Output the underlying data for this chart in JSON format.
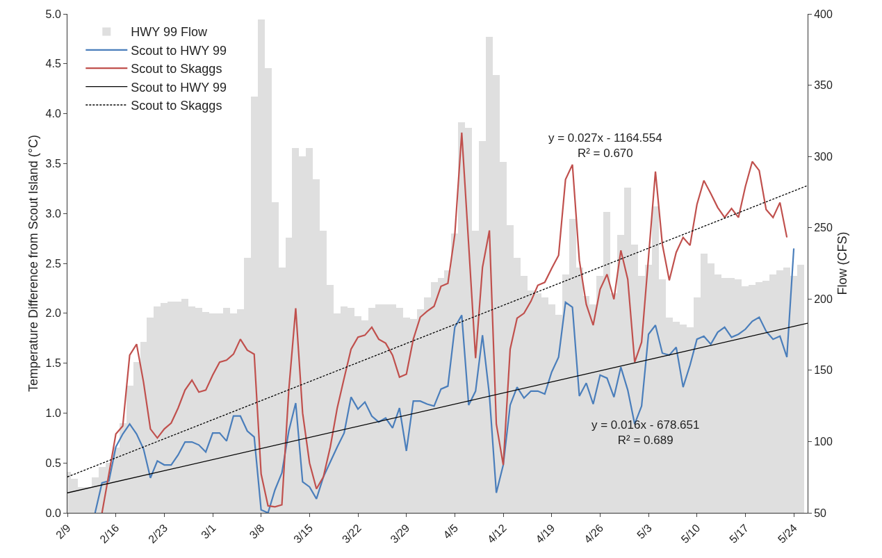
{
  "chart_data": {
    "type": "line",
    "ylabel": "Temperature Difference from Scout Island (°C)",
    "y2label": "Flow (CFS)",
    "x": [
      "--02-09",
      "--02-10",
      "--02-11",
      "--02-12",
      "--02-13",
      "--02-14",
      "--02-15",
      "--02-16",
      "--02-17",
      "--02-18",
      "--02-19",
      "--02-20",
      "--02-21",
      "--02-22",
      "--02-23",
      "--02-24",
      "--02-25",
      "--02-26",
      "--02-27",
      "--02-28",
      "--02-29",
      "--03-01",
      "--03-02",
      "--03-03",
      "--03-04",
      "--03-05",
      "--03-06",
      "--03-07",
      "--03-08",
      "--03-09",
      "--03-10",
      "--03-11",
      "--03-12",
      "--03-13",
      "--03-14",
      "--03-15",
      "--03-16",
      "--03-17",
      "--03-18",
      "--03-19",
      "--03-20",
      "--03-21",
      "--03-22",
      "--03-23",
      "--03-24",
      "--03-25",
      "--03-26",
      "--03-27",
      "--03-28",
      "--03-29",
      "--03-30",
      "--03-31",
      "--04-01",
      "--04-02",
      "--04-03",
      "--04-04",
      "--04-05",
      "--04-06",
      "--04-07",
      "--04-08",
      "--04-09",
      "--04-10",
      "--04-11",
      "--04-12",
      "--04-13",
      "--04-14",
      "--04-15",
      "--04-16",
      "--04-17",
      "--04-18",
      "--04-19",
      "--04-20",
      "--04-21",
      "--04-22",
      "--04-23",
      "--04-24",
      "--04-25",
      "--04-26",
      "--04-27",
      "--04-28",
      "--04-29",
      "--04-30",
      "--05-01",
      "--05-02",
      "--05-03",
      "--05-04",
      "--05-05",
      "--05-06",
      "--05-07",
      "--05-08",
      "--05-09",
      "--05-10",
      "--05-11",
      "--05-12",
      "--05-13",
      "--05-14",
      "--05-15",
      "--05-16",
      "--05-17",
      "--05-18",
      "--05-19",
      "--05-20",
      "--05-21",
      "--05-22",
      "--05-23",
      "--05-24",
      "--05-25"
    ],
    "series": [
      {
        "name": "HWY 99 Flow",
        "type": "bar",
        "axis": "y2",
        "color": "#dfdfdf",
        "values": [
          79,
          74,
          68,
          68,
          75,
          82,
          85,
          96,
          113,
          139,
          156,
          170,
          187,
          195,
          197,
          198,
          198,
          200,
          195,
          194,
          191,
          190,
          190,
          194,
          190,
          193,
          229,
          342,
          396,
          362,
          268,
          222,
          243,
          306,
          300,
          306,
          284,
          248,
          210,
          190,
          195,
          194,
          188,
          185,
          194,
          196,
          196,
          196,
          194,
          187,
          186,
          193,
          201,
          212,
          215,
          220,
          246,
          324,
          320,
          248,
          311,
          384,
          357,
          296,
          252,
          229,
          216,
          206,
          204,
          201,
          196,
          189,
          217,
          256,
          222,
          202,
          196,
          216,
          261,
          204,
          245,
          278,
          238,
          216,
          224,
          265,
          214,
          187,
          184,
          182,
          180,
          201,
          232,
          225,
          217,
          215,
          215,
          214,
          209,
          210,
          212,
          213,
          217,
          220,
          222,
          216,
          224
        ]
      },
      {
        "name": "Scout to HWY 99",
        "color": "#4a7ebb",
        "values": [
          null,
          null,
          null,
          null,
          0.0,
          0.3,
          0.32,
          0.66,
          0.79,
          0.89,
          0.79,
          0.64,
          0.35,
          0.52,
          0.48,
          0.48,
          0.58,
          0.71,
          0.71,
          0.68,
          0.61,
          0.8,
          0.8,
          0.72,
          0.97,
          0.97,
          0.82,
          0.76,
          0.03,
          0.0,
          0.23,
          0.4,
          0.82,
          1.1,
          0.31,
          0.26,
          0.14,
          0.36,
          0.51,
          0.66,
          0.8,
          1.16,
          1.04,
          1.11,
          0.97,
          0.91,
          0.95,
          0.85,
          1.05,
          0.62,
          1.12,
          1.12,
          1.09,
          1.07,
          1.24,
          1.27,
          1.86,
          1.98,
          1.08,
          1.22,
          1.78,
          1.18,
          0.2,
          0.48,
          1.08,
          1.26,
          1.15,
          1.22,
          1.22,
          1.19,
          1.41,
          1.56,
          2.11,
          2.06,
          1.17,
          1.3,
          1.09,
          1.38,
          1.35,
          1.16,
          1.46,
          1.23,
          0.89,
          1.07,
          1.79,
          1.88,
          1.6,
          1.58,
          1.66,
          1.26,
          1.48,
          1.74,
          1.77,
          1.69,
          1.81,
          1.86,
          1.76,
          1.79,
          1.84,
          1.92,
          1.96,
          1.82,
          1.74,
          1.77,
          1.56,
          2.65,
          null
        ]
      },
      {
        "name": "Scout to Skaggs",
        "color": "#c0504d",
        "values": [
          null,
          null,
          null,
          null,
          null,
          0.0,
          0.39,
          0.79,
          0.87,
          1.58,
          1.69,
          1.31,
          0.84,
          0.75,
          0.84,
          0.9,
          1.05,
          1.23,
          1.33,
          1.21,
          1.23,
          1.38,
          1.51,
          1.53,
          1.59,
          1.74,
          1.63,
          1.59,
          0.39,
          0.07,
          0.06,
          0.08,
          1.23,
          2.05,
          1.0,
          0.5,
          0.24,
          0.36,
          0.66,
          1.05,
          1.35,
          1.64,
          1.76,
          1.78,
          1.86,
          1.74,
          1.7,
          1.58,
          1.36,
          1.39,
          1.74,
          1.96,
          2.02,
          2.07,
          2.27,
          2.3,
          2.79,
          3.81,
          2.69,
          1.55,
          2.46,
          2.83,
          0.89,
          0.48,
          1.64,
          1.95,
          2.0,
          2.12,
          2.28,
          2.31,
          2.45,
          2.58,
          3.34,
          3.49,
          2.53,
          2.09,
          1.88,
          2.24,
          2.39,
          2.14,
          2.63,
          2.34,
          1.51,
          1.71,
          2.56,
          3.42,
          2.69,
          2.33,
          2.61,
          2.76,
          2.68,
          3.09,
          3.33,
          3.2,
          3.06,
          2.96,
          3.05,
          2.96,
          3.27,
          3.52,
          3.43,
          3.04,
          2.96,
          3.11,
          2.76,
          null,
          null
        ]
      },
      {
        "name": "Scout to HWY 99",
        "color": "#000000",
        "line_style": "solid",
        "x": [
          "--02-09",
          "--05-26"
        ],
        "values": [
          0.2,
          1.9
        ]
      },
      {
        "name": "Scout to Skaggs",
        "color": "#000000",
        "line_style": "dashed",
        "x": [
          "--02-09",
          "--05-26"
        ],
        "values": [
          0.36,
          3.28
        ]
      }
    ],
    "xlim": [
      "--02-09",
      "--05-26"
    ],
    "xticks": [
      {
        "value": "--02-09",
        "label": "2/9"
      },
      {
        "value": "--02-16",
        "label": "2/16"
      },
      {
        "value": "--02-23",
        "label": "2/23"
      },
      {
        "value": "--03-01",
        "label": "3/1"
      },
      {
        "value": "--03-08",
        "label": "3/8"
      },
      {
        "value": "--03-15",
        "label": "3/15"
      },
      {
        "value": "--03-22",
        "label": "3/22"
      },
      {
        "value": "--03-29",
        "label": "3/29"
      },
      {
        "value": "--04-05",
        "label": "4/5"
      },
      {
        "value": "--04-12",
        "label": "4/12"
      },
      {
        "value": "--04-19",
        "label": "4/19"
      },
      {
        "value": "--04-26",
        "label": "4/26"
      },
      {
        "value": "--05-03",
        "label": "5/3"
      },
      {
        "value": "--05-10",
        "label": "5/10"
      },
      {
        "value": "--05-17",
        "label": "5/17"
      },
      {
        "value": "--05-24",
        "label": "5/24"
      }
    ],
    "ylim": [
      0,
      5
    ],
    "yticks": [
      {
        "value": 0,
        "label": "0.0"
      },
      {
        "value": 0.5,
        "label": "0.5"
      },
      {
        "value": 1,
        "label": "1.0"
      },
      {
        "value": 1.5,
        "label": "1.5"
      },
      {
        "value": 2,
        "label": "2.0"
      },
      {
        "value": 2.5,
        "label": "2.5"
      },
      {
        "value": 3,
        "label": "3.0"
      },
      {
        "value": 3.5,
        "label": "3.5"
      },
      {
        "value": 4,
        "label": "4.0"
      },
      {
        "value": 4.5,
        "label": "4.5"
      },
      {
        "value": 5,
        "label": "5.0"
      }
    ],
    "y2lim": [
      50,
      400
    ],
    "y2ticks": [
      50,
      100,
      150,
      200,
      250,
      300,
      350,
      400
    ],
    "annotations": [
      "y = 0.027x - 1164.554\nR² = 0.670",
      "y = 0.016x - 678.651\nR² = 0.689"
    ],
    "legend": "top left",
    "marker": "none"
  }
}
